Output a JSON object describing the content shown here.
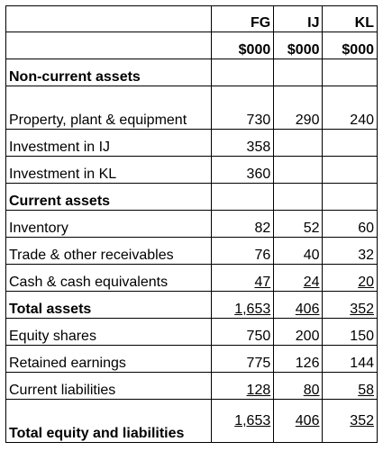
{
  "columns": [
    "FG",
    "IJ",
    "KL"
  ],
  "units": [
    "$000",
    "$000",
    "$000"
  ],
  "sections": {
    "non_current": "Non-current assets",
    "current": "Current assets"
  },
  "rows": [
    {
      "label": "Property, plant & equipment",
      "fg": "730",
      "ij": "290",
      "kl": "240"
    },
    {
      "label": "Investment in IJ",
      "fg": "358",
      "ij": "",
      "kl": ""
    },
    {
      "label": "Investment in KL",
      "fg": "360",
      "ij": "",
      "kl": ""
    },
    {
      "label": "Inventory",
      "fg": "82",
      "ij": "52",
      "kl": "60"
    },
    {
      "label": "Trade & other receivables",
      "fg": "76",
      "ij": "40",
      "kl": "32"
    },
    {
      "label": "Cash & cash equivalents",
      "fg": "47",
      "ij": "24",
      "kl": "20"
    },
    {
      "label": "Total assets",
      "fg": "1,653",
      "ij": "406",
      "kl": "352"
    },
    {
      "label": "Equity shares",
      "fg": "750",
      "ij": "200",
      "kl": "150"
    },
    {
      "label": "Retained earnings",
      "fg": "775",
      "ij": "126",
      "kl": "144"
    },
    {
      "label": "Current liabilities",
      "fg": "128",
      "ij": "80",
      "kl": "58"
    },
    {
      "label": "Total equity and liabilities",
      "fg": "1,653",
      "ij": "406",
      "kl": "352"
    }
  ]
}
